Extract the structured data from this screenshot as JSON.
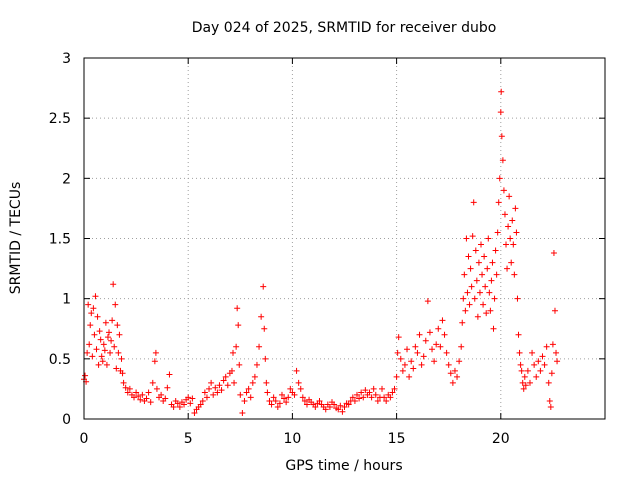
{
  "chart_data": {
    "type": "scatter",
    "title": "Day 024 of 2025, SRMTID for receiver dubo",
    "xlabel": "GPS time / hours",
    "ylabel": "SRMTID / TECUs",
    "xlim": [
      0,
      25
    ],
    "ylim": [
      0,
      3
    ],
    "grid": true,
    "marker": "+",
    "color": "#ff0000",
    "xticks": [
      0,
      5,
      10,
      15,
      20
    ],
    "xtick_labels": [
      "0",
      "5",
      "10",
      "15",
      "20"
    ],
    "yticks": [
      0,
      0.5,
      1,
      1.5,
      2,
      2.5,
      3
    ],
    "ytick_labels": [
      "0",
      "0.5",
      "1",
      "1.5",
      "2",
      "2.5",
      "3"
    ],
    "series": [
      {
        "name": "SRMTID",
        "points": [
          [
            0.0,
            0.33
          ],
          [
            0.05,
            0.36
          ],
          [
            0.1,
            0.31
          ],
          [
            0.15,
            0.55
          ],
          [
            0.2,
            0.95
          ],
          [
            0.25,
            0.62
          ],
          [
            0.3,
            0.78
          ],
          [
            0.35,
            0.88
          ],
          [
            0.4,
            0.52
          ],
          [
            0.45,
            0.92
          ],
          [
            0.5,
            0.7
          ],
          [
            0.55,
            1.02
          ],
          [
            0.6,
            0.58
          ],
          [
            0.65,
            0.85
          ],
          [
            0.7,
            0.45
          ],
          [
            0.75,
            0.73
          ],
          [
            0.8,
            0.66
          ],
          [
            0.85,
            0.52
          ],
          [
            0.9,
            0.48
          ],
          [
            0.95,
            0.62
          ],
          [
            1.0,
            0.57
          ],
          [
            1.05,
            0.8
          ],
          [
            1.1,
            0.45
          ],
          [
            1.15,
            0.68
          ],
          [
            1.2,
            0.72
          ],
          [
            1.25,
            0.55
          ],
          [
            1.3,
            0.65
          ],
          [
            1.35,
            0.82
          ],
          [
            1.4,
            1.12
          ],
          [
            1.45,
            0.6
          ],
          [
            1.5,
            0.95
          ],
          [
            1.55,
            0.42
          ],
          [
            1.6,
            0.78
          ],
          [
            1.65,
            0.55
          ],
          [
            1.7,
            0.7
          ],
          [
            1.75,
            0.4
          ],
          [
            1.8,
            0.5
          ],
          [
            1.85,
            0.38
          ],
          [
            1.9,
            0.3
          ],
          [
            2.0,
            0.26
          ],
          [
            2.1,
            0.22
          ],
          [
            2.2,
            0.25
          ],
          [
            2.3,
            0.2
          ],
          [
            2.4,
            0.18
          ],
          [
            2.5,
            0.22
          ],
          [
            2.6,
            0.19
          ],
          [
            2.7,
            0.16
          ],
          [
            2.8,
            0.2
          ],
          [
            2.9,
            0.15
          ],
          [
            3.0,
            0.17
          ],
          [
            3.1,
            0.22
          ],
          [
            3.2,
            0.14
          ],
          [
            3.3,
            0.3
          ],
          [
            3.4,
            0.48
          ],
          [
            3.45,
            0.55
          ],
          [
            3.5,
            0.25
          ],
          [
            3.6,
            0.18
          ],
          [
            3.7,
            0.2
          ],
          [
            3.8,
            0.15
          ],
          [
            3.9,
            0.17
          ],
          [
            4.0,
            0.26
          ],
          [
            4.1,
            0.37
          ],
          [
            4.2,
            0.12
          ],
          [
            4.3,
            0.1
          ],
          [
            4.4,
            0.15
          ],
          [
            4.5,
            0.13
          ],
          [
            4.6,
            0.1
          ],
          [
            4.7,
            0.14
          ],
          [
            4.8,
            0.12
          ],
          [
            4.9,
            0.16
          ],
          [
            5.0,
            0.18
          ],
          [
            5.1,
            0.13
          ],
          [
            5.2,
            0.17
          ],
          [
            5.3,
            0.05
          ],
          [
            5.4,
            0.08
          ],
          [
            5.5,
            0.1
          ],
          [
            5.6,
            0.12
          ],
          [
            5.7,
            0.15
          ],
          [
            5.8,
            0.22
          ],
          [
            5.9,
            0.18
          ],
          [
            6.0,
            0.25
          ],
          [
            6.1,
            0.3
          ],
          [
            6.2,
            0.2
          ],
          [
            6.3,
            0.26
          ],
          [
            6.4,
            0.22
          ],
          [
            6.5,
            0.28
          ],
          [
            6.6,
            0.24
          ],
          [
            6.7,
            0.32
          ],
          [
            6.8,
            0.35
          ],
          [
            6.9,
            0.28
          ],
          [
            7.0,
            0.38
          ],
          [
            7.1,
            0.4
          ],
          [
            7.15,
            0.55
          ],
          [
            7.2,
            0.3
          ],
          [
            7.3,
            0.6
          ],
          [
            7.35,
            0.92
          ],
          [
            7.4,
            0.78
          ],
          [
            7.45,
            0.45
          ],
          [
            7.5,
            0.2
          ],
          [
            7.6,
            0.05
          ],
          [
            7.7,
            0.15
          ],
          [
            7.8,
            0.22
          ],
          [
            7.9,
            0.25
          ],
          [
            8.0,
            0.18
          ],
          [
            8.1,
            0.3
          ],
          [
            8.2,
            0.35
          ],
          [
            8.3,
            0.45
          ],
          [
            8.4,
            0.6
          ],
          [
            8.5,
            0.85
          ],
          [
            8.6,
            1.1
          ],
          [
            8.65,
            0.75
          ],
          [
            8.7,
            0.5
          ],
          [
            8.75,
            0.3
          ],
          [
            8.8,
            0.22
          ],
          [
            8.9,
            0.15
          ],
          [
            9.0,
            0.12
          ],
          [
            9.1,
            0.18
          ],
          [
            9.2,
            0.15
          ],
          [
            9.3,
            0.1
          ],
          [
            9.4,
            0.13
          ],
          [
            9.5,
            0.2
          ],
          [
            9.6,
            0.17
          ],
          [
            9.7,
            0.14
          ],
          [
            9.8,
            0.18
          ],
          [
            9.9,
            0.25
          ],
          [
            10.0,
            0.22
          ],
          [
            10.1,
            0.2
          ],
          [
            10.2,
            0.4
          ],
          [
            10.3,
            0.3
          ],
          [
            10.4,
            0.25
          ],
          [
            10.5,
            0.18
          ],
          [
            10.6,
            0.15
          ],
          [
            10.7,
            0.12
          ],
          [
            10.8,
            0.16
          ],
          [
            10.9,
            0.14
          ],
          [
            11.0,
            0.12
          ],
          [
            11.1,
            0.1
          ],
          [
            11.2,
            0.13
          ],
          [
            11.3,
            0.15
          ],
          [
            11.4,
            0.12
          ],
          [
            11.5,
            0.1
          ],
          [
            11.6,
            0.08
          ],
          [
            11.7,
            0.12
          ],
          [
            11.8,
            0.1
          ],
          [
            11.9,
            0.14
          ],
          [
            12.0,
            0.12
          ],
          [
            12.1,
            0.09
          ],
          [
            12.2,
            0.08
          ],
          [
            12.3,
            0.11
          ],
          [
            12.4,
            0.06
          ],
          [
            12.5,
            0.1
          ],
          [
            12.6,
            0.13
          ],
          [
            12.7,
            0.12
          ],
          [
            12.8,
            0.15
          ],
          [
            12.9,
            0.18
          ],
          [
            13.0,
            0.15
          ],
          [
            13.1,
            0.2
          ],
          [
            13.2,
            0.17
          ],
          [
            13.3,
            0.22
          ],
          [
            13.4,
            0.18
          ],
          [
            13.5,
            0.24
          ],
          [
            13.6,
            0.2
          ],
          [
            13.7,
            0.22
          ],
          [
            13.8,
            0.18
          ],
          [
            13.9,
            0.25
          ],
          [
            14.0,
            0.2
          ],
          [
            14.1,
            0.15
          ],
          [
            14.2,
            0.18
          ],
          [
            14.3,
            0.25
          ],
          [
            14.4,
            0.18
          ],
          [
            14.5,
            0.15
          ],
          [
            14.6,
            0.2
          ],
          [
            14.7,
            0.18
          ],
          [
            14.8,
            0.22
          ],
          [
            14.9,
            0.25
          ],
          [
            15.0,
            0.35
          ],
          [
            15.05,
            0.55
          ],
          [
            15.1,
            0.68
          ],
          [
            15.2,
            0.5
          ],
          [
            15.3,
            0.4
          ],
          [
            15.4,
            0.45
          ],
          [
            15.5,
            0.58
          ],
          [
            15.6,
            0.35
          ],
          [
            15.7,
            0.48
          ],
          [
            15.8,
            0.42
          ],
          [
            15.9,
            0.6
          ],
          [
            16.0,
            0.55
          ],
          [
            16.1,
            0.7
          ],
          [
            16.2,
            0.45
          ],
          [
            16.3,
            0.52
          ],
          [
            16.4,
            0.65
          ],
          [
            16.5,
            0.98
          ],
          [
            16.6,
            0.72
          ],
          [
            16.7,
            0.58
          ],
          [
            16.8,
            0.48
          ],
          [
            16.9,
            0.62
          ],
          [
            17.0,
            0.75
          ],
          [
            17.1,
            0.6
          ],
          [
            17.2,
            0.82
          ],
          [
            17.3,
            0.7
          ],
          [
            17.4,
            0.55
          ],
          [
            17.5,
            0.45
          ],
          [
            17.6,
            0.38
          ],
          [
            17.7,
            0.3
          ],
          [
            17.8,
            0.4
          ],
          [
            17.9,
            0.35
          ],
          [
            18.0,
            0.48
          ],
          [
            18.1,
            0.6
          ],
          [
            18.15,
            0.8
          ],
          [
            18.2,
            1.0
          ],
          [
            18.25,
            1.2
          ],
          [
            18.3,
            0.9
          ],
          [
            18.35,
            1.5
          ],
          [
            18.4,
            1.05
          ],
          [
            18.45,
            1.35
          ],
          [
            18.5,
            0.95
          ],
          [
            18.55,
            1.25
          ],
          [
            18.6,
            1.1
          ],
          [
            18.65,
            1.52
          ],
          [
            18.7,
            1.8
          ],
          [
            18.75,
            1.0
          ],
          [
            18.8,
            1.4
          ],
          [
            18.85,
            1.15
          ],
          [
            18.9,
            0.85
          ],
          [
            18.95,
            1.3
          ],
          [
            19.0,
            1.05
          ],
          [
            19.05,
            1.45
          ],
          [
            19.1,
            1.2
          ],
          [
            19.15,
            0.95
          ],
          [
            19.2,
            1.35
          ],
          [
            19.25,
            1.1
          ],
          [
            19.3,
            0.88
          ],
          [
            19.35,
            1.25
          ],
          [
            19.4,
            1.5
          ],
          [
            19.45,
            1.05
          ],
          [
            19.5,
            0.9
          ],
          [
            19.55,
            1.15
          ],
          [
            19.6,
            1.3
          ],
          [
            19.65,
            0.75
          ],
          [
            19.7,
            1.0
          ],
          [
            19.75,
            1.4
          ],
          [
            19.8,
            1.2
          ],
          [
            19.85,
            1.55
          ],
          [
            19.9,
            1.8
          ],
          [
            19.95,
            2.0
          ],
          [
            20.0,
            2.55
          ],
          [
            20.02,
            2.72
          ],
          [
            20.05,
            2.35
          ],
          [
            20.1,
            2.15
          ],
          [
            20.15,
            1.9
          ],
          [
            20.2,
            1.7
          ],
          [
            20.25,
            1.45
          ],
          [
            20.3,
            1.25
          ],
          [
            20.35,
            1.6
          ],
          [
            20.4,
            1.85
          ],
          [
            20.45,
            1.5
          ],
          [
            20.5,
            1.3
          ],
          [
            20.55,
            1.65
          ],
          [
            20.6,
            1.45
          ],
          [
            20.65,
            1.2
          ],
          [
            20.7,
            1.75
          ],
          [
            20.75,
            1.55
          ],
          [
            20.8,
            1.0
          ],
          [
            20.85,
            0.7
          ],
          [
            20.9,
            0.55
          ],
          [
            20.95,
            0.45
          ],
          [
            21.0,
            0.4
          ],
          [
            21.05,
            0.3
          ],
          [
            21.1,
            0.25
          ],
          [
            21.15,
            0.35
          ],
          [
            21.2,
            0.28
          ],
          [
            21.3,
            0.4
          ],
          [
            21.4,
            0.3
          ],
          [
            21.5,
            0.55
          ],
          [
            21.6,
            0.45
          ],
          [
            21.7,
            0.35
          ],
          [
            21.8,
            0.48
          ],
          [
            21.9,
            0.4
          ],
          [
            22.0,
            0.52
          ],
          [
            22.1,
            0.45
          ],
          [
            22.2,
            0.6
          ],
          [
            22.3,
            0.3
          ],
          [
            22.35,
            0.15
          ],
          [
            22.4,
            0.1
          ],
          [
            22.45,
            0.38
          ],
          [
            22.5,
            0.62
          ],
          [
            22.55,
            1.38
          ],
          [
            22.6,
            0.9
          ],
          [
            22.65,
            0.55
          ],
          [
            22.7,
            0.48
          ]
        ]
      }
    ]
  }
}
